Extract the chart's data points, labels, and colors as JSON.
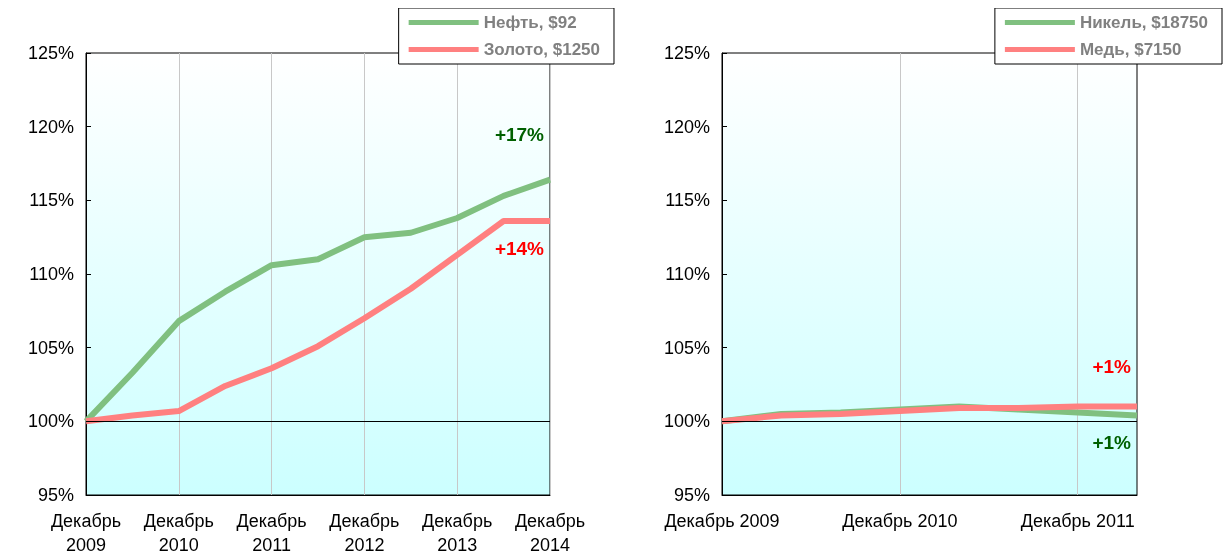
{
  "chart_data": [
    {
      "type": "line",
      "categories": [
        "Декабрь 2009",
        null,
        "Декабрь 2010",
        null,
        "Декабрь 2011",
        null,
        "Декабрь 2012",
        null,
        "Декабрь 2013",
        null,
        "Декабрь 2014"
      ],
      "series": [
        {
          "name": "Нефть, $92",
          "color": "#80c080",
          "values": [
            100,
            103.3,
            106.8,
            108.8,
            110.6,
            111,
            112.5,
            112.8,
            113.8,
            115.3,
            116.4
          ]
        },
        {
          "name": "Золото, $1250",
          "color": "#ff8080",
          "values": [
            100,
            100.4,
            100.7,
            102.4,
            103.6,
            105.1,
            107,
            109,
            111.3,
            113.6,
            113.6
          ]
        }
      ],
      "ylim": [
        95,
        125
      ],
      "yticks": [
        {
          "value": 95,
          "label": "95%"
        },
        {
          "value": 100,
          "label": "100%"
        },
        {
          "value": 105,
          "label": "105%"
        },
        {
          "value": 110,
          "label": "110%"
        },
        {
          "value": 115,
          "label": "115%"
        },
        {
          "value": 120,
          "label": "120%"
        },
        {
          "value": 125,
          "label": "125%"
        }
      ],
      "ref_lines": [
        {
          "axis": "y",
          "value": 100,
          "color": "#000000"
        }
      ],
      "annotations": [
        "+17%",
        "+14%"
      ],
      "grid": "x",
      "legend": "top right",
      "marker": "none",
      "line_style": "solid"
    },
    {
      "type": "line",
      "categories": [
        "Декабрь 2009",
        null,
        null,
        "Декабрь 2010",
        null,
        null,
        "Декабрь 2011",
        null
      ],
      "series": [
        {
          "name": "Никель, $18750",
          "color": "#80c080",
          "values": [
            100,
            100.5,
            100.6,
            100.8,
            101,
            100.8,
            100.6,
            100.4
          ]
        },
        {
          "name": "Медь, $7150",
          "color": "#ff8080",
          "values": [
            100,
            100.4,
            100.5,
            100.7,
            100.9,
            100.9,
            101,
            101
          ]
        }
      ],
      "ylim": [
        95,
        125
      ],
      "yticks": [
        {
          "value": 95,
          "label": "95%"
        },
        {
          "value": 100,
          "label": "100%"
        },
        {
          "value": 105,
          "label": "105%"
        },
        {
          "value": 110,
          "label": "110%"
        },
        {
          "value": 115,
          "label": "115%"
        },
        {
          "value": 120,
          "label": "120%"
        },
        {
          "value": 125,
          "label": "125%"
        }
      ],
      "ref_lines": [
        {
          "axis": "y",
          "value": 100,
          "color": "#000000"
        }
      ],
      "annotations": [
        "+1%",
        "+1%"
      ],
      "grid": "x",
      "legend": "top right",
      "marker": "none",
      "line_style": "solid"
    }
  ]
}
